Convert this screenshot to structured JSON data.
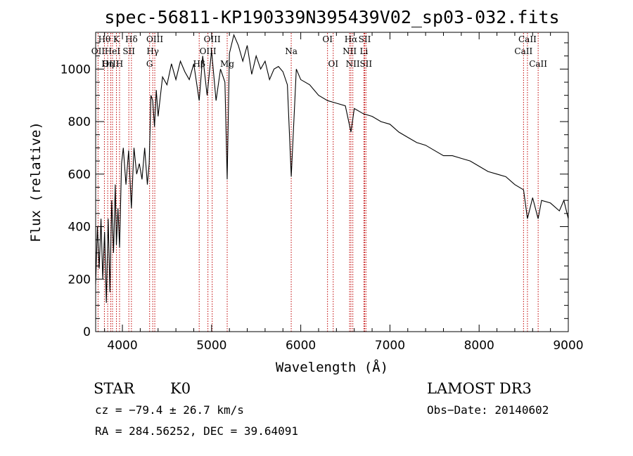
{
  "chart_data": {
    "type": "line",
    "title": "spec-56811-KP190339N395439V02_sp03-032.fits",
    "xlabel": "Wavelength (Å)",
    "ylabel": "Flux (relative)",
    "xlim": [
      3700,
      9000
    ],
    "ylim": [
      0,
      1140
    ],
    "xticks": [
      4000,
      5000,
      6000,
      7000,
      8000,
      9000
    ],
    "yticks": [
      0,
      200,
      400,
      600,
      800,
      1000
    ],
    "series": [
      {
        "name": "flux",
        "x": [
          3700,
          3720,
          3740,
          3760,
          3780,
          3800,
          3820,
          3840,
          3860,
          3880,
          3900,
          3920,
          3933,
          3950,
          3968,
          3990,
          4010,
          4040,
          4070,
          4101,
          4130,
          4160,
          4190,
          4220,
          4250,
          4280,
          4300,
          4320,
          4340,
          4360,
          4380,
          4400,
          4450,
          4500,
          4550,
          4600,
          4650,
          4700,
          4750,
          4800,
          4861,
          4900,
          4950,
          5000,
          5050,
          5100,
          5150,
          5175,
          5200,
          5250,
          5300,
          5350,
          5400,
          5450,
          5500,
          5550,
          5600,
          5650,
          5700,
          5750,
          5800,
          5850,
          5893,
          5950,
          6000,
          6100,
          6200,
          6300,
          6400,
          6500,
          6563,
          6600,
          6700,
          6800,
          6900,
          7000,
          7100,
          7200,
          7300,
          7400,
          7500,
          7600,
          7700,
          7800,
          7900,
          8000,
          8100,
          8200,
          8300,
          8400,
          8498,
          8542,
          8600,
          8662,
          8700,
          8800,
          8900,
          8950,
          9000
        ],
        "values": [
          180,
          400,
          240,
          430,
          200,
          380,
          110,
          430,
          150,
          500,
          300,
          560,
          330,
          470,
          320,
          640,
          700,
          560,
          690,
          470,
          700,
          600,
          640,
          580,
          700,
          560,
          640,
          900,
          880,
          780,
          920,
          820,
          970,
          940,
          1020,
          960,
          1030,
          990,
          960,
          1020,
          880,
          1050,
          900,
          1070,
          880,
          1000,
          950,
          580,
          1060,
          1130,
          1090,
          1030,
          1090,
          980,
          1050,
          1000,
          1030,
          960,
          1000,
          1010,
          990,
          940,
          590,
          1000,
          960,
          940,
          900,
          880,
          870,
          860,
          760,
          850,
          830,
          820,
          800,
          790,
          760,
          740,
          720,
          710,
          690,
          670,
          670,
          660,
          650,
          630,
          610,
          600,
          590,
          560,
          540,
          430,
          510,
          430,
          500,
          490,
          460,
          500,
          430
        ]
      }
    ],
    "lines": [
      {
        "label": "Hθ",
        "x": 3798,
        "row": 1
      },
      {
        "label": "OII",
        "x": 3727,
        "row": 2
      },
      {
        "label": "OIII",
        "x": 3869,
        "row": 3
      },
      {
        "label": "K",
        "x": 3933,
        "row": 1
      },
      {
        "label": "HeI",
        "x": 3889,
        "row": 2
      },
      {
        "label": "Hη",
        "x": 3835,
        "row": 3
      },
      {
        "label": "H",
        "x": 3968,
        "row": 3
      },
      {
        "label": "Hδ",
        "x": 4101,
        "row": 1
      },
      {
        "label": "SII",
        "x": 4072,
        "row": 2
      },
      {
        "label": "OIII",
        "x": 4363,
        "row": 1
      },
      {
        "label": "Hγ",
        "x": 4340,
        "row": 2
      },
      {
        "label": "G",
        "x": 4305,
        "row": 3
      },
      {
        "label": "OIII",
        "x": 5007,
        "row": 1
      },
      {
        "label": "OIII",
        "x": 4959,
        "row": 2
      },
      {
        "label": "Hβ",
        "x": 4861,
        "row": 3
      },
      {
        "label": "Mg",
        "x": 5175,
        "row": 3
      },
      {
        "label": "Na",
        "x": 5893,
        "row": 2
      },
      {
        "label": "OI",
        "x": 6300,
        "row": 1
      },
      {
        "label": "OI",
        "x": 6364,
        "row": 3
      },
      {
        "label": "Hα",
        "x": 6563,
        "row": 1
      },
      {
        "label": "SII",
        "x": 6717,
        "row": 1
      },
      {
        "label": "NII",
        "x": 6548,
        "row": 2
      },
      {
        "label": "Li",
        "x": 6708,
        "row": 2
      },
      {
        "label": "NII",
        "x": 6584,
        "row": 3
      },
      {
        "label": "SII",
        "x": 6731,
        "row": 3
      },
      {
        "label": "CaII",
        "x": 8542,
        "row": 1
      },
      {
        "label": "CaII",
        "x": 8498,
        "row": 2
      },
      {
        "label": "CaII",
        "x": 8662,
        "row": 3
      }
    ]
  },
  "info": {
    "object": "STAR",
    "subclass": "K0",
    "survey": "LAMOST DR3",
    "cz": "cz = −79.4 ± 26.7 km/s",
    "obs_date": "Obs−Date: 20140602",
    "coords": "RA = 284.56252, DEC =  39.64091"
  }
}
